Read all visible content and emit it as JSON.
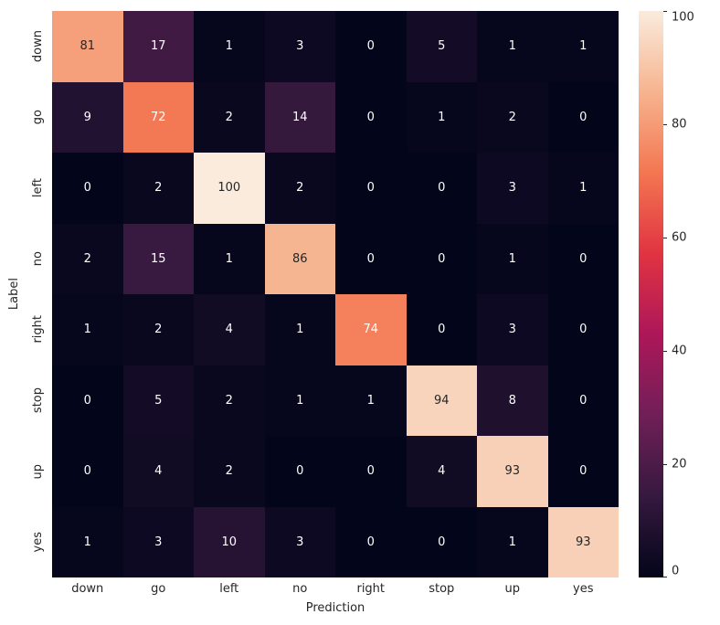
{
  "chart_data": {
    "type": "heatmap",
    "title": "",
    "xlabel": "Prediction",
    "ylabel": "Label",
    "x_categories": [
      "down",
      "go",
      "left",
      "no",
      "right",
      "stop",
      "up",
      "yes"
    ],
    "y_categories": [
      "down",
      "go",
      "left",
      "no",
      "right",
      "stop",
      "up",
      "yes"
    ],
    "matrix": [
      [
        81,
        17,
        1,
        3,
        0,
        5,
        1,
        1
      ],
      [
        9,
        72,
        2,
        14,
        0,
        1,
        2,
        0
      ],
      [
        0,
        2,
        100,
        2,
        0,
        0,
        3,
        1
      ],
      [
        2,
        15,
        1,
        86,
        0,
        0,
        1,
        0
      ],
      [
        1,
        2,
        4,
        1,
        74,
        0,
        3,
        0
      ],
      [
        0,
        5,
        2,
        1,
        1,
        94,
        8,
        0
      ],
      [
        0,
        4,
        2,
        0,
        0,
        4,
        93,
        0
      ],
      [
        1,
        3,
        10,
        3,
        0,
        0,
        1,
        93
      ]
    ],
    "vmin": 0,
    "vmax": 100,
    "colorbar_ticks": [
      0,
      20,
      40,
      60,
      80,
      100
    ],
    "colormap": "rocket",
    "colormap_stops": [
      {
        "pos": 0.0,
        "color": "#03051A"
      },
      {
        "pos": 0.143,
        "color": "#35193E"
      },
      {
        "pos": 0.286,
        "color": "#701F57"
      },
      {
        "pos": 0.429,
        "color": "#AD1759"
      },
      {
        "pos": 0.571,
        "color": "#E13342"
      },
      {
        "pos": 0.714,
        "color": "#F37651"
      },
      {
        "pos": 0.857,
        "color": "#F6B48F"
      },
      {
        "pos": 1.0,
        "color": "#FAEBDD"
      }
    ],
    "annotation_text_dark": "#262626",
    "annotation_text_light": "#FFFFFF",
    "legend_position": "right-colorbar",
    "grid": false
  }
}
